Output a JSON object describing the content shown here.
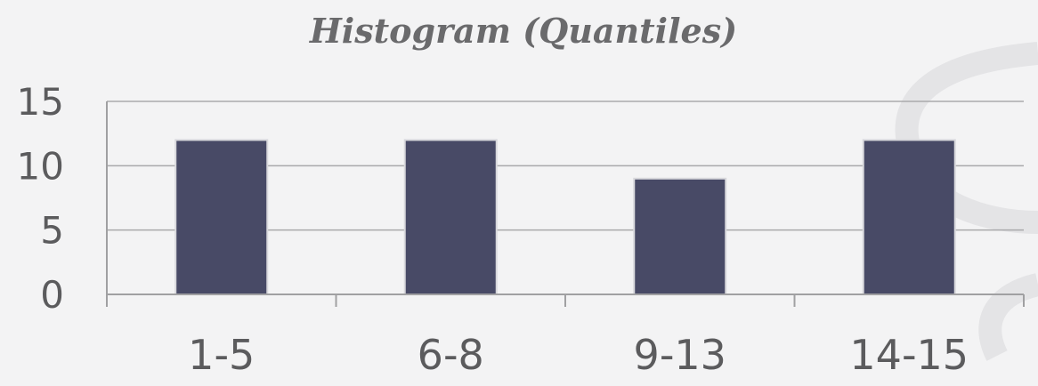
{
  "chart_data": {
    "type": "bar",
    "title": "Histogram (Quantiles)",
    "categories": [
      "1-5",
      "6-8",
      "9-13",
      "14-15"
    ],
    "values": [
      12,
      12,
      9,
      12
    ],
    "ylim": [
      0,
      15
    ],
    "yticks": [
      0,
      5,
      10,
      15
    ],
    "xlabel": "",
    "ylabel": "",
    "grid": true,
    "legend": "none",
    "bar_color": "#484a66"
  }
}
